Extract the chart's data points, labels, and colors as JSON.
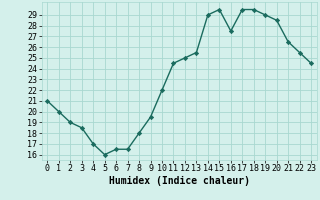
{
  "x": [
    0,
    1,
    2,
    3,
    4,
    5,
    6,
    7,
    8,
    9,
    10,
    11,
    12,
    13,
    14,
    15,
    16,
    17,
    18,
    19,
    20,
    21,
    22,
    23
  ],
  "y": [
    21,
    20,
    19,
    18.5,
    17,
    16,
    16.5,
    16.5,
    18,
    19.5,
    22,
    24.5,
    25,
    25.5,
    29,
    29.5,
    27.5,
    29.5,
    29.5,
    29,
    28.5,
    26.5,
    25.5,
    24.5
  ],
  "line_color": "#1a6b5e",
  "marker": "D",
  "markersize": 2.2,
  "linewidth": 1.0,
  "bg_color": "#d4f0eb",
  "grid_color": "#a8d8d0",
  "xlabel": "Humidex (Indice chaleur)",
  "xlim": [
    -0.5,
    23.5
  ],
  "ylim": [
    15.5,
    30.2
  ],
  "yticks": [
    16,
    17,
    18,
    19,
    20,
    21,
    22,
    23,
    24,
    25,
    26,
    27,
    28,
    29
  ],
  "xticks": [
    0,
    1,
    2,
    3,
    4,
    5,
    6,
    7,
    8,
    9,
    10,
    11,
    12,
    13,
    14,
    15,
    16,
    17,
    18,
    19,
    20,
    21,
    22,
    23
  ],
  "xlabel_fontsize": 7,
  "tick_fontsize": 6
}
